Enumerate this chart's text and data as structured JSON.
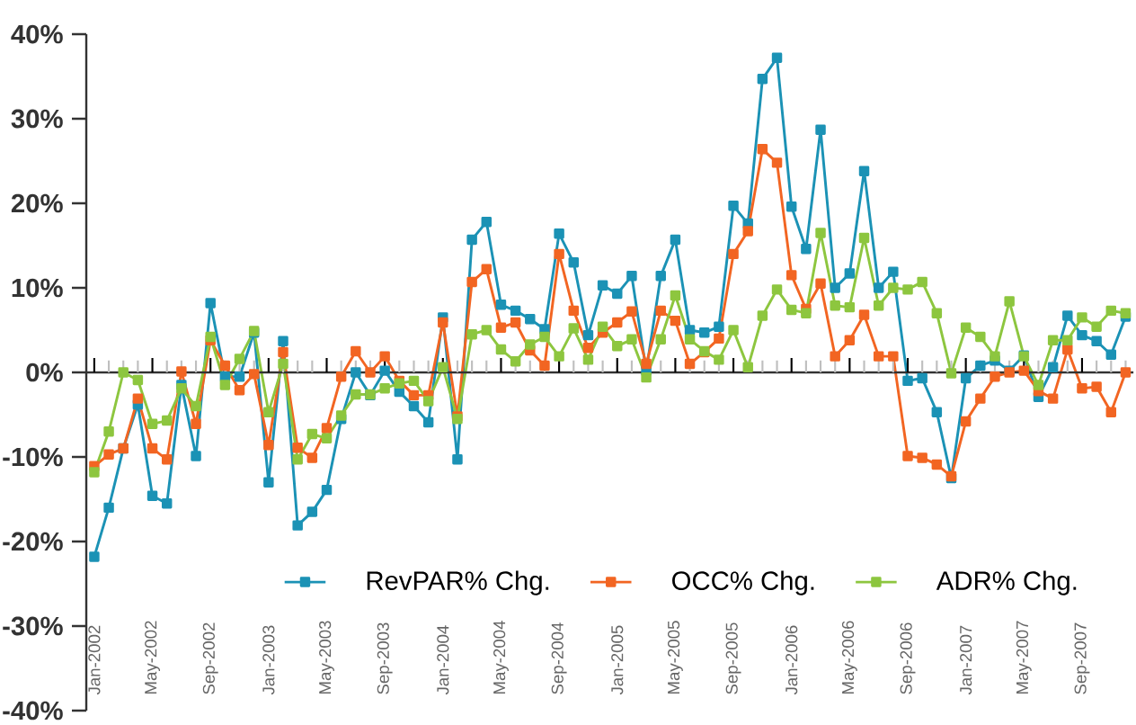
{
  "chart_data": {
    "type": "line",
    "categories": [
      "Jan-2002",
      null,
      null,
      null,
      "May-2002",
      null,
      null,
      null,
      "Sep-2002",
      null,
      null,
      null,
      "Jan-2003",
      null,
      null,
      null,
      "May-2003",
      null,
      null,
      null,
      "Sep-2003",
      null,
      null,
      null,
      "Jan-2004",
      null,
      null,
      null,
      "May-2004",
      null,
      null,
      null,
      "Sep-2004",
      null,
      null,
      null,
      "Jan-2005",
      null,
      null,
      null,
      "May-2005",
      null,
      null,
      null,
      "Sep-2005",
      null,
      null,
      null,
      "Jan-2006",
      null,
      null,
      null,
      "May-2006",
      null,
      null,
      null,
      "Sep-2006",
      null,
      null,
      null,
      "Jan-2007",
      null,
      null,
      null,
      "May-2007",
      null,
      null,
      null,
      "Sep-2007",
      null,
      null,
      null
    ],
    "series": [
      {
        "name": "RevPAR% Chg.",
        "color": "#1b92b5",
        "values": [
          -21.8,
          -16.0,
          -9.0,
          -3.8,
          -14.6,
          -15.5,
          -1.5,
          -9.9,
          8.2,
          -0.5,
          -0.5,
          4.7,
          -13.0,
          3.7,
          -18.1,
          -16.5,
          -13.9,
          -5.5,
          0,
          -2.7,
          0.2,
          -2.3,
          -4.0,
          -5.9,
          6.5,
          -10.3,
          15.7,
          17.8,
          8.0,
          7.3,
          6.3,
          5.1,
          16.4,
          13.0,
          4.4,
          10.3,
          9.3,
          11.4,
          0.2,
          11.4,
          15.7,
          5.0,
          4.7,
          5.4,
          19.7,
          17.6,
          34.7,
          37.2,
          19.6,
          14.6,
          28.7,
          10.0,
          11.7,
          23.8,
          10.0,
          11.9,
          -1.0,
          -0.7,
          -4.7,
          -12.5,
          -0.7,
          0.8,
          1.4,
          0.2,
          2.0,
          -2.9,
          0.6,
          6.7,
          4.4,
          3.7,
          2.1,
          6.6
        ]
      },
      {
        "name": "OCC% Chg.",
        "color": "#f26522",
        "values": [
          -11.1,
          -9.7,
          -9.0,
          -3.1,
          -9.0,
          -10.3,
          0.1,
          -6.1,
          3.8,
          0.8,
          -2.1,
          -0.2,
          -8.6,
          2.4,
          -8.9,
          -10.1,
          -6.6,
          -0.5,
          2.5,
          0,
          1.9,
          -1.0,
          -2.7,
          -2.7,
          5.9,
          -5.2,
          10.7,
          12.2,
          5.3,
          5.9,
          2.6,
          0.8,
          14.0,
          7.3,
          2.9,
          4.7,
          5.9,
          7.2,
          1.0,
          7.3,
          6.1,
          1.0,
          2.4,
          4.0,
          14.0,
          16.7,
          26.4,
          24.8,
          11.5,
          7.5,
          10.5,
          1.9,
          3.8,
          6.8,
          1.9,
          1.9,
          -9.9,
          -10.1,
          -10.9,
          -12.3,
          -5.8,
          -3.1,
          -0.5,
          0,
          0.2,
          -2.2,
          -3.1,
          2.7,
          -1.9,
          -1.7,
          -4.7,
          0
        ]
      },
      {
        "name": "ADR% Chg.",
        "color": "#8dc63f",
        "values": [
          -11.8,
          -7.0,
          0,
          -0.9,
          -6.1,
          -5.7,
          -1.9,
          -4.0,
          4.2,
          -1.5,
          1.6,
          4.9,
          -4.7,
          1.0,
          -10.3,
          -7.3,
          -7.8,
          -5.1,
          -2.6,
          -2.6,
          -1.9,
          -1.3,
          -1.0,
          -3.4,
          0.6,
          -5.5,
          4.5,
          5.0,
          2.7,
          1.3,
          3.3,
          4.2,
          1.9,
          5.2,
          1.5,
          5.4,
          3.1,
          3.9,
          -0.6,
          3.9,
          9.1,
          3.9,
          2.5,
          1.5,
          5.0,
          0.6,
          6.7,
          9.8,
          7.4,
          7.0,
          16.5,
          7.9,
          7.7,
          15.9,
          7.9,
          10.0,
          9.8,
          10.7,
          7.0,
          -0.1,
          5.3,
          4.2,
          1.9,
          8.4,
          1.9,
          -1.5,
          3.8,
          3.8,
          6.5,
          5.4,
          7.3,
          7.0
        ]
      }
    ],
    "ylim": [
      -40,
      40
    ],
    "yticks": [
      {
        "value": -40,
        "label": "-40%"
      },
      {
        "value": -30,
        "label": "-30%"
      },
      {
        "value": -20,
        "label": "-20%"
      },
      {
        "value": -10,
        "label": "-10%"
      },
      {
        "value": 0,
        "label": "0%"
      },
      {
        "value": 10,
        "label": "10%"
      },
      {
        "value": 20,
        "label": "20%"
      },
      {
        "value": 30,
        "label": "30%"
      },
      {
        "value": 40,
        "label": "40%"
      }
    ],
    "ref_lines": [
      {
        "axis": "y",
        "value": 0,
        "color": "#333333"
      }
    ],
    "marker": "square",
    "line_style": "solid",
    "legend": "bottom",
    "grid": false
  }
}
